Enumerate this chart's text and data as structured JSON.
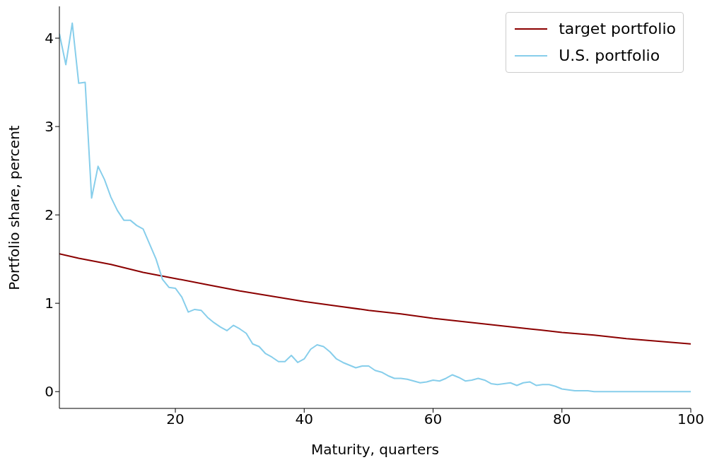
{
  "chart_data": {
    "type": "line",
    "xlabel": "Maturity, quarters",
    "ylabel": "Portfolio share, percent",
    "xlim": [
      2,
      100
    ],
    "ylim": [
      -0.19,
      4.36
    ],
    "xticks": [
      20,
      40,
      60,
      80,
      100
    ],
    "yticks": [
      0,
      1,
      2,
      3,
      4
    ],
    "grid": false,
    "legend": "top right",
    "marker": "none",
    "line_style": "solid",
    "series": [
      {
        "name": "target portfolio",
        "color": "#8b0000",
        "x": [
          2,
          5,
          10,
          15,
          20,
          25,
          30,
          35,
          40,
          45,
          50,
          55,
          60,
          65,
          70,
          75,
          80,
          85,
          90,
          95,
          100
        ],
        "values": [
          1.56,
          1.51,
          1.44,
          1.35,
          1.28,
          1.21,
          1.14,
          1.08,
          1.02,
          0.97,
          0.92,
          0.88,
          0.83,
          0.79,
          0.75,
          0.71,
          0.67,
          0.64,
          0.6,
          0.57,
          0.54
        ]
      },
      {
        "name": "U.S. portfolio",
        "color": "#87ceeb",
        "x": [
          2,
          3,
          4,
          5,
          6,
          7,
          8,
          9,
          10,
          11,
          12,
          13,
          14,
          15,
          16,
          17,
          18,
          19,
          20,
          21,
          22,
          23,
          24,
          25,
          26,
          27,
          28,
          29,
          30,
          31,
          32,
          33,
          34,
          35,
          36,
          37,
          38,
          39,
          40,
          41,
          42,
          43,
          44,
          45,
          46,
          47,
          48,
          49,
          50,
          51,
          52,
          53,
          54,
          55,
          56,
          57,
          58,
          59,
          60,
          61,
          62,
          63,
          64,
          65,
          66,
          67,
          68,
          69,
          70,
          71,
          72,
          73,
          74,
          75,
          76,
          77,
          78,
          79,
          80,
          81,
          82,
          83,
          84,
          85,
          86,
          87,
          88,
          89,
          90,
          91,
          92,
          93,
          94,
          95,
          96,
          97,
          98,
          99,
          100
        ],
        "values": [
          4.05,
          3.7,
          4.17,
          3.49,
          3.5,
          2.19,
          2.55,
          2.4,
          2.2,
          2.05,
          1.94,
          1.94,
          1.88,
          1.84,
          1.67,
          1.5,
          1.27,
          1.18,
          1.17,
          1.07,
          0.9,
          0.93,
          0.92,
          0.84,
          0.78,
          0.73,
          0.69,
          0.75,
          0.71,
          0.66,
          0.54,
          0.51,
          0.43,
          0.39,
          0.34,
          0.34,
          0.41,
          0.33,
          0.37,
          0.48,
          0.53,
          0.51,
          0.45,
          0.37,
          0.33,
          0.3,
          0.27,
          0.29,
          0.29,
          0.24,
          0.22,
          0.18,
          0.15,
          0.15,
          0.14,
          0.12,
          0.1,
          0.11,
          0.13,
          0.12,
          0.15,
          0.19,
          0.16,
          0.12,
          0.13,
          0.15,
          0.13,
          0.09,
          0.08,
          0.09,
          0.1,
          0.07,
          0.1,
          0.11,
          0.07,
          0.08,
          0.08,
          0.06,
          0.03,
          0.02,
          0.01,
          0.01,
          0.01,
          0,
          0,
          0,
          0,
          0,
          0,
          0,
          0,
          0,
          0,
          0,
          0,
          0,
          0,
          0,
          0
        ]
      }
    ]
  }
}
